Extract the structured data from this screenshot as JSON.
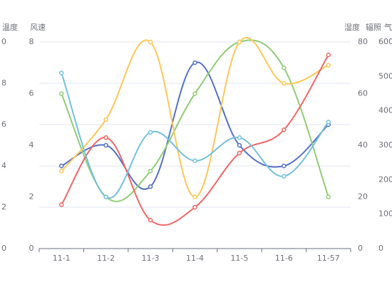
{
  "chart_data": {
    "type": "line",
    "categories": [
      "11-1",
      "11-2",
      "11-3",
      "11-4",
      "11-5",
      "11-6",
      "11-57"
    ],
    "y_name": "风速",
    "ylim": [
      0,
      8
    ],
    "yticks": [
      0,
      2,
      4,
      6,
      8
    ],
    "y2_name": "湿度",
    "y2lim": [
      0,
      80
    ],
    "y2ticks": [
      0,
      20,
      40,
      60,
      80
    ],
    "y3_name": "辐照",
    "y3lim": [
      0,
      600
    ],
    "y3ticks": [
      0,
      100,
      200,
      300,
      400,
      500,
      600
    ],
    "y4_name": "气",
    "left_outer_name": "温度",
    "left_outer_labels": [
      "0",
      "2",
      "4",
      "6",
      "8",
      "0"
    ],
    "grid": true,
    "series": [
      {
        "color": "#5470c6",
        "values": [
          3.2,
          4.0,
          2.4,
          7.2,
          4.0,
          3.2,
          4.8
        ]
      },
      {
        "color": "#91cc75",
        "values": [
          6.0,
          2.0,
          3.0,
          6.0,
          8.0,
          7.0,
          2.0
        ]
      },
      {
        "color": "#fac858",
        "values": [
          3.0,
          5.0,
          8.0,
          2.0,
          8.0,
          6.4,
          7.1
        ]
      },
      {
        "color": "#ee6666",
        "values": [
          1.7,
          4.3,
          1.1,
          1.6,
          3.7,
          4.6,
          7.5
        ]
      },
      {
        "color": "#73c0de",
        "values": [
          6.8,
          2.0,
          4.5,
          3.4,
          4.3,
          2.8,
          4.9
        ]
      }
    ]
  }
}
